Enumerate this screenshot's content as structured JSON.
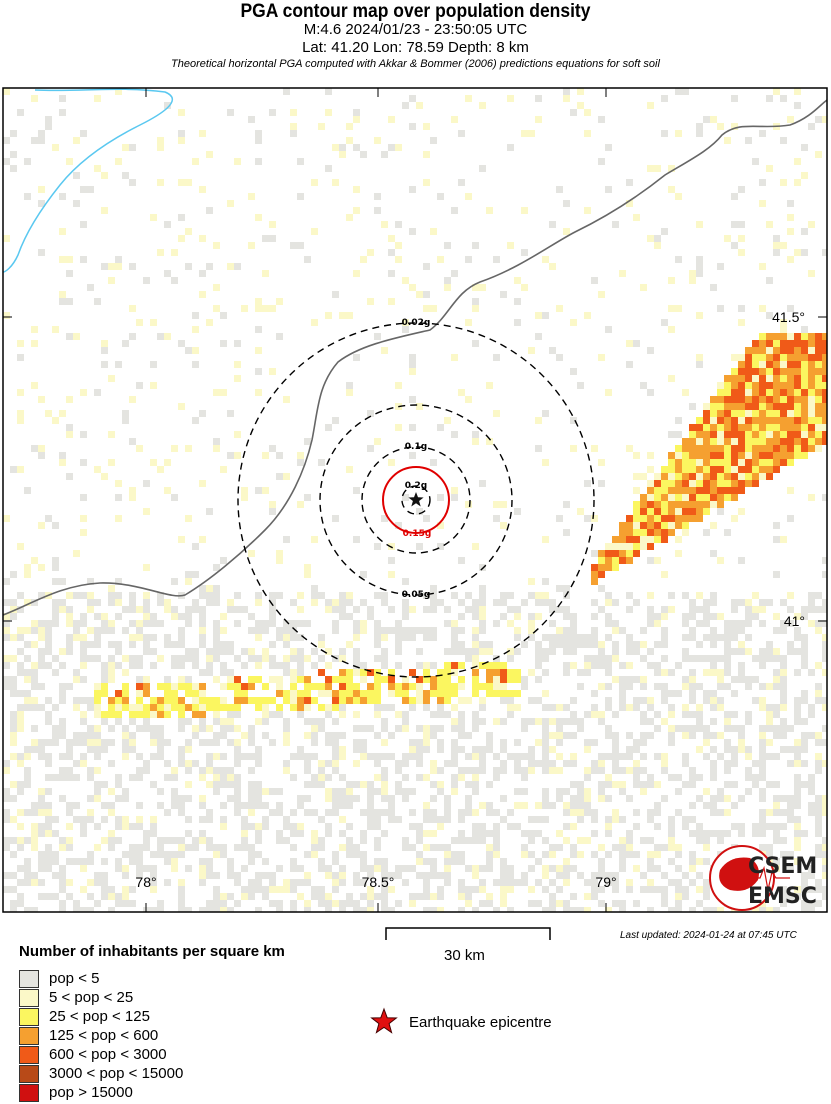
{
  "header": {
    "title": "PGA contour map over population density",
    "event": "M:4.6 2024/01/23 - 23:50:05 UTC",
    "location": "Lat: 41.20 Lon: 78.59 Depth: 8 km",
    "note": "Theoretical horizontal PGA computed with Akkar & Bommer (2006) predictions equations for soft soil"
  },
  "map": {
    "epicenter": {
      "lat": 41.2,
      "lon": 78.59
    },
    "lon_ticks": [
      "78°",
      "78.5°",
      "79°"
    ],
    "lat_ticks": [
      "41.5°",
      "41°"
    ],
    "contours": [
      {
        "label": "0.02g",
        "color": "#000000",
        "style": "dashed"
      },
      {
        "label": "0.05g",
        "color": "#000000",
        "style": "dashed"
      },
      {
        "label": "0.1g",
        "color": "#000000",
        "style": "dashed"
      },
      {
        "label": "0.15g",
        "color": "#e00000",
        "style": "solid"
      },
      {
        "label": "0.2g",
        "color": "#000000",
        "style": "dashed"
      }
    ],
    "logo": {
      "line1": "CSEM",
      "line2": "EMSC"
    }
  },
  "scale": {
    "label": "30 km"
  },
  "updated": "Last updated: 2024-01-24 at 07:45 UTC",
  "legend": {
    "title": "Number of inhabitants per square km",
    "items": [
      {
        "label": "pop < 5",
        "color": "#e4e4e0"
      },
      {
        "label": "5 < pop < 25",
        "color": "#fbf8c8"
      },
      {
        "label": "25 < pop < 125",
        "color": "#fbf660"
      },
      {
        "label": "125 < pop < 600",
        "color": "#f5a030"
      },
      {
        "label": "600 < pop < 3000",
        "color": "#f05a18"
      },
      {
        "label": "3000 < pop < 15000",
        "color": "#b84a18"
      },
      {
        "label": "pop > 15000",
        "color": "#d01010"
      }
    ],
    "epicentre_label": "Earthquake epicentre"
  }
}
